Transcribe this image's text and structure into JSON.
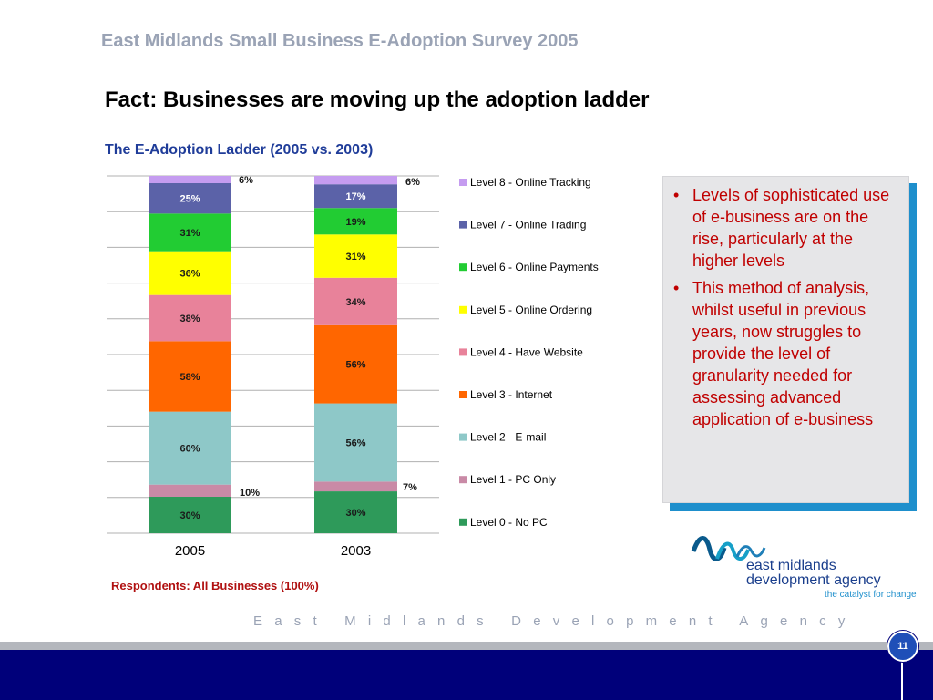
{
  "header": {
    "title": "East Midlands Small Business E-Adoption Survey 2005"
  },
  "slide": {
    "heading": "Fact: Businesses are moving up the adoption ladder"
  },
  "chart_data": {
    "type": "bar",
    "stacked": true,
    "title": "The E-Adoption Ladder (2005 vs. 2003)",
    "categories": [
      "2005",
      "2003"
    ],
    "series": [
      {
        "name": "Level 0 - No PC",
        "values": [
          30,
          30
        ],
        "color": "#2e9a5a"
      },
      {
        "name": "Level 1 - PC Only",
        "values": [
          10,
          7
        ],
        "color": "#c98aa6"
      },
      {
        "name": "Level 2 - E-mail",
        "values": [
          60,
          56
        ],
        "color": "#8ec8c8"
      },
      {
        "name": "Level 3 - Internet",
        "values": [
          58,
          56
        ],
        "color": "#ff6600"
      },
      {
        "name": "Level 4 - Have Website",
        "values": [
          38,
          34
        ],
        "color": "#e8829a"
      },
      {
        "name": "Level 5 - Online Ordering",
        "values": [
          36,
          31
        ],
        "color": "#ffff00"
      },
      {
        "name": "Level 6 - Online Payments",
        "values": [
          31,
          19
        ],
        "color": "#22cc33"
      },
      {
        "name": "Level 7 - Online Trading",
        "values": [
          25,
          17
        ],
        "color": "#5b62a8"
      },
      {
        "name": "Level 8 - Online Tracking",
        "values": [
          6,
          6
        ],
        "color": "#c59cf0"
      }
    ],
    "legend_position": "right",
    "grid": true
  },
  "note": {
    "respondents": "Respondents: All Businesses (100%)"
  },
  "textbox": {
    "bullet": "•",
    "bullets": [
      "Levels of sophisticated use of e-business are on the rise, particularly at the higher levels",
      "This method of analysis, whilst useful in previous years, now struggles to provide the level of granularity needed for assessing advanced application of e-business"
    ]
  },
  "logo": {
    "line1": "east midlands",
    "line2": "development agency",
    "tagline": "the catalyst for change"
  },
  "footer": {
    "text": "East Midlands Development Agency",
    "page_number": "11"
  }
}
